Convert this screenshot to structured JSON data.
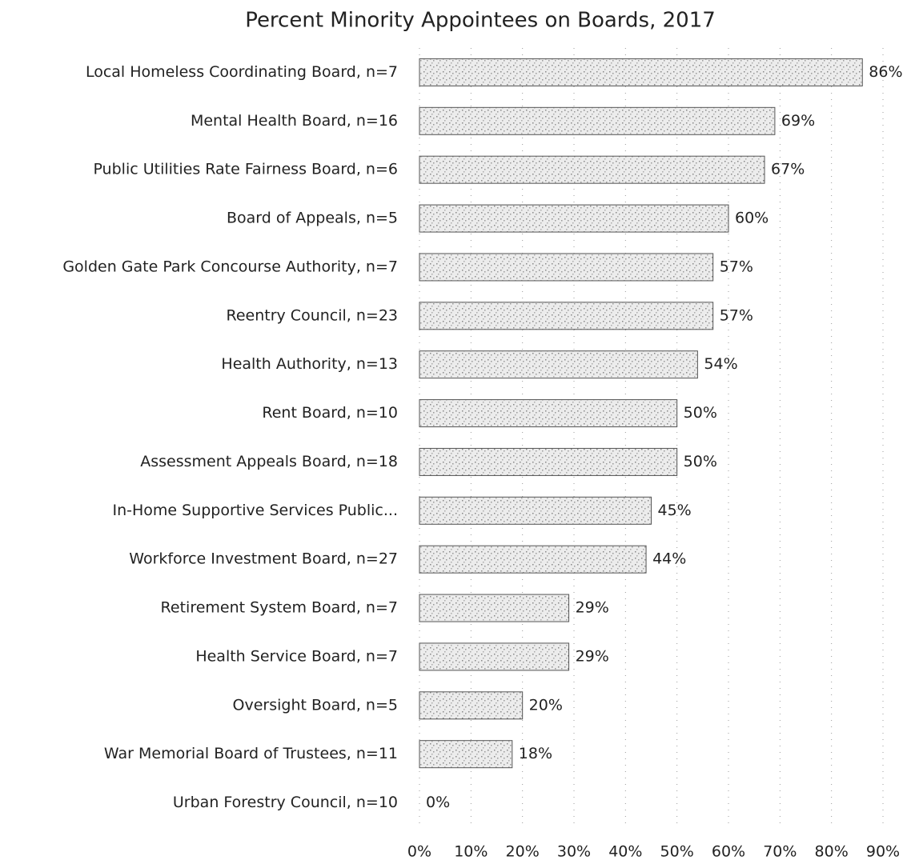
{
  "chart_data": {
    "type": "bar",
    "orientation": "horizontal",
    "title": "Percent Minority Appointees on Boards, 2017",
    "categories": [
      "Local Homeless Coordinating Board, n=7",
      "Mental Health Board, n=16",
      "Public Utilities Rate Fairness Board, n=6",
      "Board of Appeals, n=5",
      "Golden Gate Park Concourse Authority, n=7",
      "Reentry Council, n=23",
      "Health Authority, n=13",
      "Rent Board, n=10",
      "Assessment Appeals Board, n=18",
      "In-Home Supportive Services Public...",
      "Workforce Investment Board, n=27",
      "Retirement System Board, n=7",
      "Health Service Board, n=7",
      "Oversight Board, n=5",
      "War Memorial Board of Trustees, n=11",
      "Urban Forestry Council, n=10"
    ],
    "values": [
      86,
      69,
      67,
      60,
      57,
      57,
      54,
      50,
      50,
      45,
      44,
      29,
      29,
      20,
      18,
      0
    ],
    "value_labels": [
      "86%",
      "69%",
      "67%",
      "60%",
      "57%",
      "57%",
      "54%",
      "50%",
      "50%",
      "45%",
      "44%",
      "29%",
      "29%",
      "20%",
      "18%",
      "0%"
    ],
    "color": "#d9d9d9",
    "xlim": [
      0,
      90
    ],
    "xticks": [
      {
        "value": 0,
        "label": "0%"
      },
      {
        "value": 10,
        "label": "10%"
      },
      {
        "value": 20,
        "label": "20%"
      },
      {
        "value": 30,
        "label": "30%"
      },
      {
        "value": 40,
        "label": "40%"
      },
      {
        "value": 50,
        "label": "50%"
      },
      {
        "value": 60,
        "label": "60%"
      },
      {
        "value": 70,
        "label": "70%"
      },
      {
        "value": 80,
        "label": "80%"
      },
      {
        "value": 90,
        "label": "90%"
      }
    ],
    "grid": true
  }
}
